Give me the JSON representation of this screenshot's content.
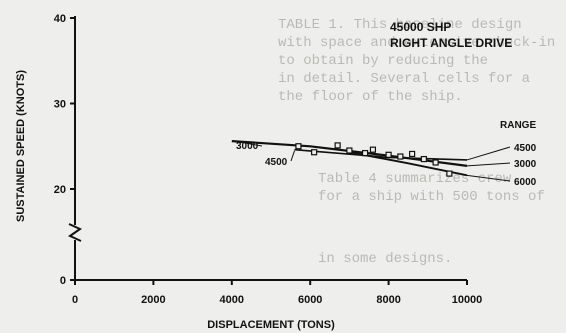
{
  "chart_data": {
    "type": "line",
    "title_lines": [
      "45000 SHP",
      "RIGHT ANGLE DRIVE"
    ],
    "xlabel": "DISPLACEMENT (TONS)",
    "ylabel": "SUSTAINED SPEED (KNOTS)",
    "xlim": [
      0,
      10000
    ],
    "ylim": [
      0,
      40
    ],
    "x_ticks": [
      0,
      2000,
      4000,
      6000,
      8000,
      10000
    ],
    "y_ticks": [
      0,
      20,
      30,
      40
    ],
    "y_axis_break": true,
    "grid": false,
    "legend_title": "RANGE",
    "series": [
      {
        "name": "3000",
        "points": [
          [
            4000,
            25.6
          ],
          [
            6000,
            25.0
          ],
          [
            8000,
            23.9
          ],
          [
            10000,
            22.7
          ]
        ]
      },
      {
        "name": "4500",
        "points": [
          [
            5600,
            24.6
          ],
          [
            8000,
            23.7
          ],
          [
            10000,
            23.4
          ]
        ]
      },
      {
        "name": "6000",
        "points": [
          [
            7000,
            24.3
          ],
          [
            8500,
            23.0
          ],
          [
            10000,
            21.6
          ]
        ]
      }
    ],
    "markers": [
      [
        5700,
        25.0
      ],
      [
        6100,
        24.3
      ],
      [
        6700,
        25.1
      ],
      [
        7000,
        24.5
      ],
      [
        7400,
        24.2
      ],
      [
        7600,
        24.6
      ],
      [
        8000,
        24.0
      ],
      [
        8300,
        23.8
      ],
      [
        8600,
        24.1
      ],
      [
        8900,
        23.5
      ],
      [
        9200,
        23.1
      ],
      [
        9550,
        21.8
      ]
    ],
    "background_text": [
      "TABLE 1.  This baseline design",
      "with space and extensive check-in",
      "to obtain by reducing the",
      "in detail.  Several cells for a",
      "the floor of the ship.",
      "Table 4 summarizes crew",
      "for a ship with 500 tons of",
      "in some designs."
    ]
  }
}
